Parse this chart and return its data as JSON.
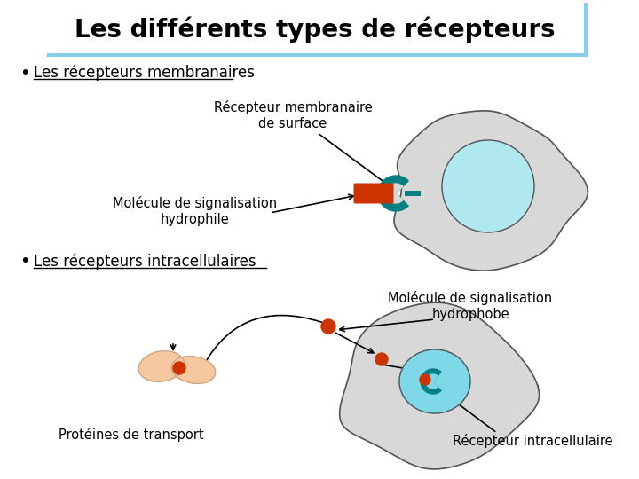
{
  "title": "Les différents types de récepteurs",
  "title_fontsize": 20,
  "bg_color": "#ffffff",
  "text_color": "#000000",
  "bullet1": "Les récepteurs membranaires",
  "bullet2": "Les récepteurs intracellulaires",
  "label_recepteur_membranaire": "Récepteur membranaire\nde surface",
  "label_molecule_hydrophile": "Molécule de signalisation\nhydrophile",
  "label_molecule_hydrophobe": "Molécule de signalisation\nhydrophobe",
  "label_proteines": "Protéines de transport",
  "label_recepteur_intra": "Récepteur intracellulaire",
  "cell_color": "#d8d8d8",
  "cell_edge": "#555555",
  "nucleus_color_upper": "#b0e8f0",
  "nucleus_color_lower": "#7fd8e8",
  "teal_color": "#008080",
  "orange_color": "#cc3300",
  "peach_color": "#f5c8a0",
  "peach_edge": "#c8a080",
  "title_border_color": "#87CEEB",
  "underline_color": "#000000",
  "font_family": "DejaVu Sans"
}
